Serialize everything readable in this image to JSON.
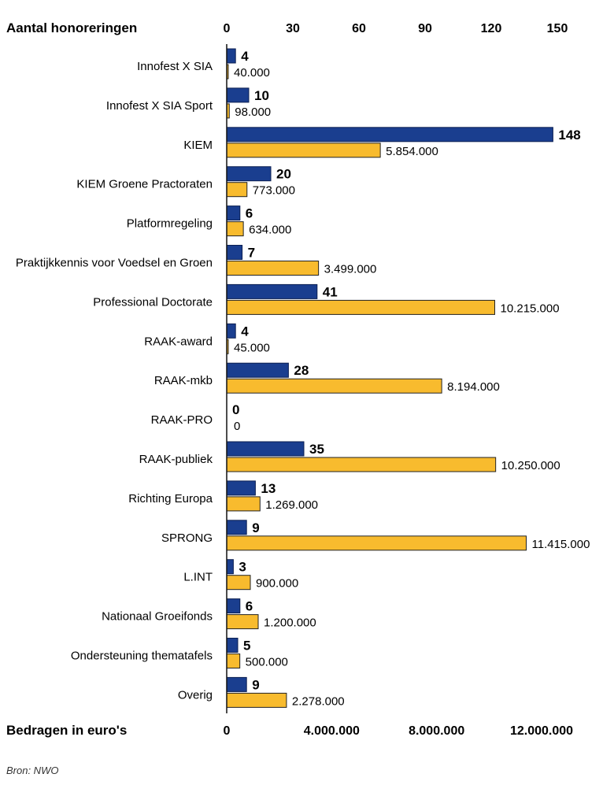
{
  "chart_data": {
    "type": "bar",
    "orientation": "horizontal",
    "top_axis_label": "Aantal honoreringen",
    "bottom_axis_label": "Bedragen in euro's",
    "top_axis": {
      "range": [
        0,
        150
      ],
      "ticks": [
        "0",
        "30",
        "60",
        "90",
        "120",
        "150"
      ]
    },
    "bottom_axis": {
      "range": [
        0,
        12000000
      ],
      "ticks": [
        "0",
        "4.000.000",
        "8.000.000",
        "12.000.000"
      ]
    },
    "categories": [
      "Innofest X SIA",
      "Innofest X SIA Sport",
      "KIEM",
      "KIEM Groene Practoraten",
      "Platformregeling",
      "Praktijkkennis voor Voedsel en Groen",
      "Professional Doctorate",
      "RAAK-award",
      "RAAK-mkb",
      "RAAK-PRO",
      "RAAK-publiek",
      "Richting Europa",
      "SPRONG",
      "L.INT",
      "Nationaal Groeifonds",
      "Ondersteuning thematafels",
      "Overig"
    ],
    "series": [
      {
        "name": "Aantal honoreringen",
        "color": "#1a3e8f",
        "values": [
          4,
          10,
          148,
          20,
          6,
          7,
          41,
          4,
          28,
          0,
          35,
          13,
          9,
          3,
          6,
          5,
          9
        ],
        "labels": [
          "4",
          "10",
          "148",
          "20",
          "6",
          "7",
          "41",
          "4",
          "28",
          "0",
          "35",
          "13",
          "9",
          "3",
          "6",
          "5",
          "9"
        ]
      },
      {
        "name": "Bedragen in euro's",
        "color": "#f8bb2e",
        "values": [
          40000,
          98000,
          5854000,
          773000,
          634000,
          3499000,
          10215000,
          45000,
          8194000,
          0,
          10250000,
          1269000,
          11415000,
          900000,
          1200000,
          500000,
          2278000
        ],
        "labels": [
          "40.000",
          "98.000",
          "5.854.000",
          "773.000",
          "634.000",
          "3.499.000",
          "10.215.000",
          "45.000",
          "8.194.000",
          "0",
          "10.250.000",
          "1.269.000",
          "11.415.000",
          "900.000",
          "1.200.000",
          "500.000",
          "2.278.000"
        ]
      }
    ],
    "source": "Bron: NWO"
  }
}
